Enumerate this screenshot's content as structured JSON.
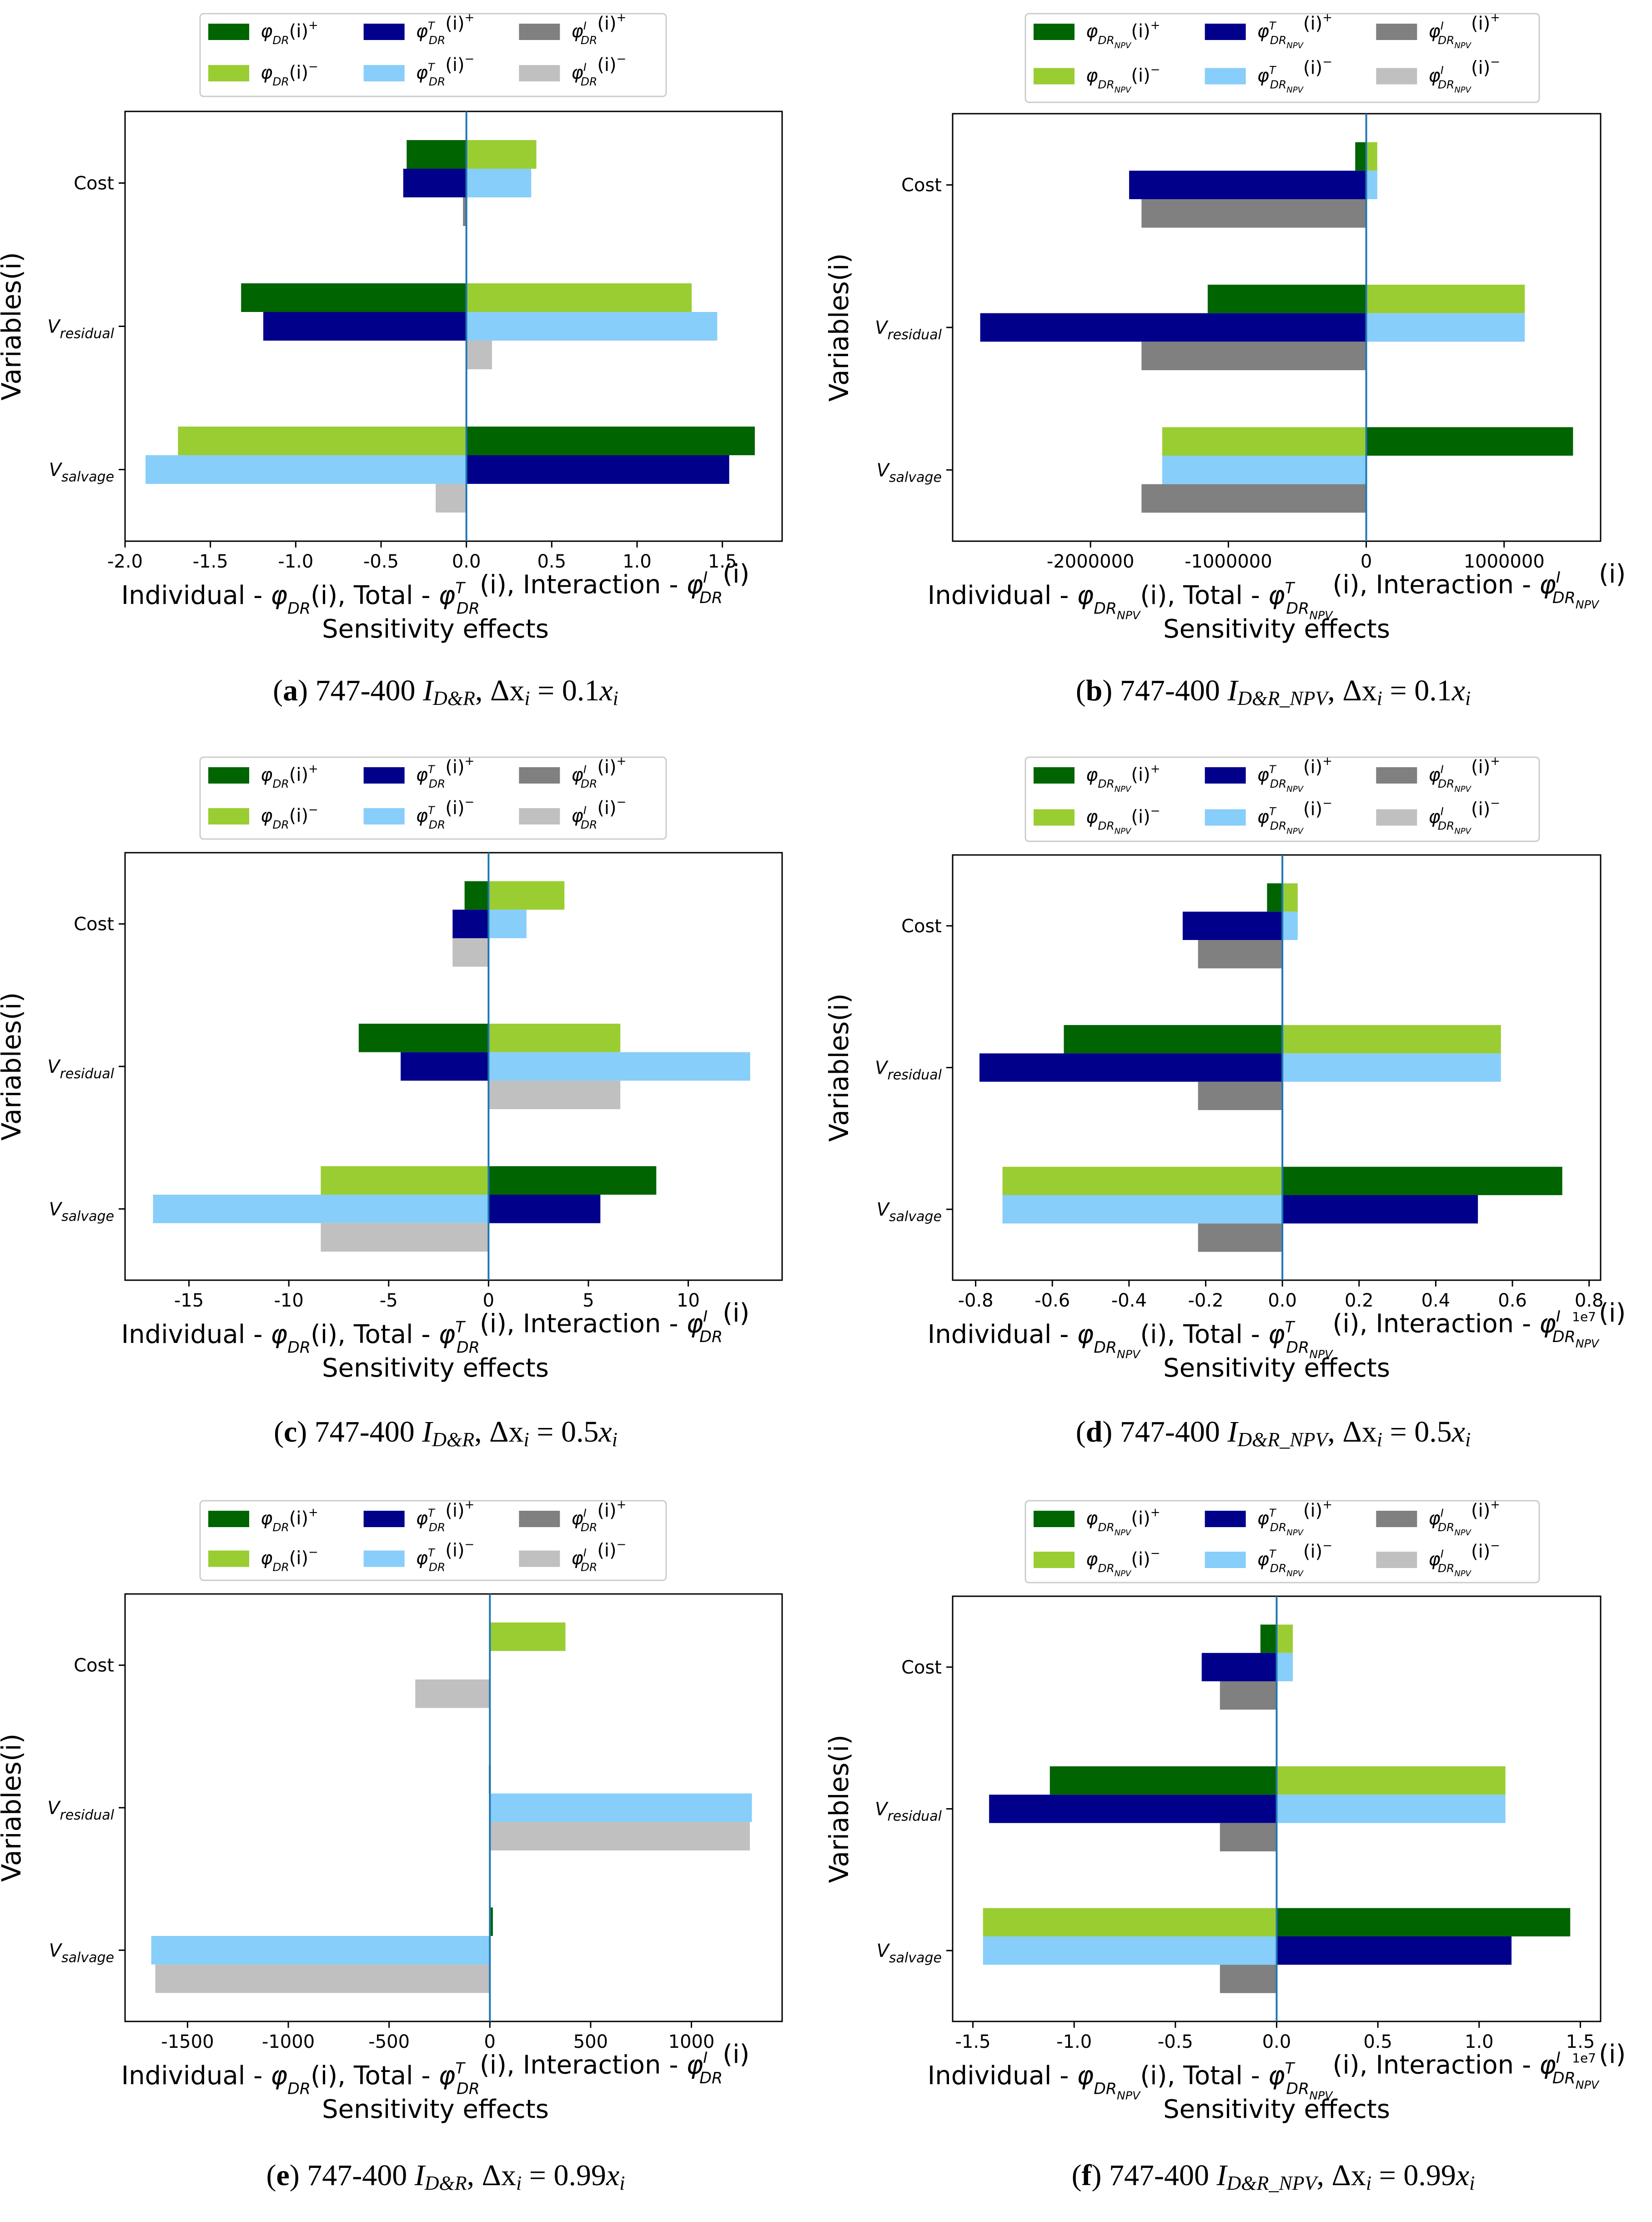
{
  "figure": {
    "legend_entries": [
      {
        "key": "ind_pos",
        "color": "#006400"
      },
      {
        "key": "ind_neg",
        "color": "#9ACD32"
      },
      {
        "key": "tot_pos",
        "color": "#00008B"
      },
      {
        "key": "tot_neg",
        "color": "#87CEFA"
      },
      {
        "key": "int_pos",
        "color": "#808080"
      },
      {
        "key": "int_neg",
        "color": "#C0C0C0"
      }
    ],
    "ylabel": "Variables(i)",
    "xlabel_line2": "Sensitivity effects"
  },
  "chart_data": [
    {
      "panel": "a",
      "type": "bar",
      "orientation": "horizontal",
      "caption": {
        "letter": "a",
        "text": "747-400",
        "index": "I",
        "index_sub": "D&R",
        "delta": "Δx",
        "i": "i",
        "eq": "= 0.1x",
        "i2": "i"
      },
      "categories": [
        "Cost",
        "V",
        "V"
      ],
      "category_subscripts": [
        "",
        "residual",
        "salvage"
      ],
      "series": [
        {
          "name": "φ_DR(i)+",
          "values": [
            -0.35,
            -1.32,
            1.69
          ]
        },
        {
          "name": "φ_DR(i)-",
          "values": [
            0.41,
            1.32,
            -1.69
          ]
        },
        {
          "name": "φT_DR(i)+",
          "values": [
            -0.37,
            -1.19,
            1.54
          ]
        },
        {
          "name": "φT_DR(i)-",
          "values": [
            0.38,
            1.47,
            -1.88
          ]
        },
        {
          "name": "φI_DR(i)+",
          "values": [
            -0.02,
            0.0,
            0.0
          ]
        },
        {
          "name": "φI_DR(i)-",
          "values": [
            0.0,
            0.15,
            -0.18
          ]
        }
      ],
      "xlim": [
        -2.0,
        1.85
      ],
      "xticks": [
        -2.0,
        -1.5,
        -1.0,
        -0.5,
        0.0,
        0.5,
        1.0,
        1.5
      ],
      "xtick_labels": [
        "-2.0",
        "-1.5",
        "-1.0",
        "-0.5",
        "0.0",
        "0.5",
        "1.0",
        "1.5"
      ],
      "xlabel": "Individual - φ_DR(i),  Total - φT_DR(i),  Interaction - φI_DR(i)",
      "ylabel": "Variables(i)",
      "offset_label": ""
    },
    {
      "panel": "b",
      "type": "bar",
      "orientation": "horizontal",
      "caption": {
        "letter": "b",
        "text": "747-400",
        "index": "I",
        "index_sub": "D&R_NPV",
        "delta": "Δx",
        "i": "i",
        "eq": "= 0.1x",
        "i2": "i"
      },
      "categories": [
        "Cost",
        "V",
        "V"
      ],
      "category_subscripts": [
        "",
        "residual",
        "salvage"
      ],
      "series": [
        {
          "name": "φ_DRNPV(i)+",
          "values": [
            -80000,
            -1150000,
            1500000
          ]
        },
        {
          "name": "φ_DRNPV(i)-",
          "values": [
            80000,
            1150000,
            -1480000
          ]
        },
        {
          "name": "φT_DRNPV(i)+",
          "values": [
            -1720000,
            -2800000,
            0
          ]
        },
        {
          "name": "φT_DRNPV(i)-",
          "values": [
            80000,
            1150000,
            -1480000
          ]
        },
        {
          "name": "φI_DRNPV(i)+",
          "values": [
            -1630000,
            -1630000,
            -1630000
          ]
        },
        {
          "name": "φI_DRNPV(i)-",
          "values": [
            0,
            0,
            0
          ]
        }
      ],
      "xlim": [
        -3000000,
        1700000
      ],
      "xticks": [
        -2000000,
        -1000000,
        0,
        1000000
      ],
      "xtick_labels": [
        "-2000000",
        "-1000000",
        "0",
        "1000000"
      ],
      "xlabel": "Individual - φ_DRNPV(i), Total - φT_DRNPV(i), Interaction - φI_DRNPV(i)",
      "ylabel": "Variables(i)",
      "offset_label": ""
    },
    {
      "panel": "c",
      "type": "bar",
      "orientation": "horizontal",
      "caption": {
        "letter": "c",
        "text": "747-400",
        "index": "I",
        "index_sub": "D&R",
        "delta": "Δx",
        "i": "i",
        "eq": "= 0.5x",
        "i2": "i"
      },
      "categories": [
        "Cost",
        "V",
        "V"
      ],
      "category_subscripts": [
        "",
        "residual",
        "salvage"
      ],
      "series": [
        {
          "name": "φ_DR(i)+",
          "values": [
            -1.2,
            -6.5,
            8.4
          ]
        },
        {
          "name": "φ_DR(i)-",
          "values": [
            3.8,
            6.6,
            -8.4
          ]
        },
        {
          "name": "φT_DR(i)+",
          "values": [
            -1.8,
            -4.4,
            5.6
          ]
        },
        {
          "name": "φT_DR(i)-",
          "values": [
            1.9,
            13.1,
            -16.8
          ]
        },
        {
          "name": "φI_DR(i)+",
          "values": [
            0,
            0,
            0
          ]
        },
        {
          "name": "φI_DR(i)-",
          "values": [
            -1.8,
            6.6,
            -8.4
          ]
        }
      ],
      "xlim": [
        -18.2,
        14.7
      ],
      "xticks": [
        -15,
        -10,
        -5,
        0,
        5,
        10
      ],
      "xtick_labels": [
        "-15",
        "-10",
        "-5",
        "0",
        "5",
        "10"
      ],
      "xlabel": "Individual - φ_DR(i),  Total - φT_DR(i),  Interaction - φI_DR(i)",
      "ylabel": "Variables(i)",
      "offset_label": ""
    },
    {
      "panel": "d",
      "type": "bar",
      "orientation": "horizontal",
      "caption": {
        "letter": "d",
        "text": "747-400",
        "index": "I",
        "index_sub": "D&R_NPV",
        "delta": "Δx",
        "i": "i",
        "eq": "= 0.5x",
        "i2": "i"
      },
      "categories": [
        "Cost",
        "V",
        "V"
      ],
      "category_subscripts": [
        "",
        "residual",
        "salvage"
      ],
      "series": [
        {
          "name": "φ_DRNPV(i)+",
          "values": [
            -0.04,
            -0.57,
            0.73
          ]
        },
        {
          "name": "φ_DRNPV(i)-",
          "values": [
            0.04,
            0.57,
            -0.73
          ]
        },
        {
          "name": "φT_DRNPV(i)+",
          "values": [
            -0.26,
            -0.79,
            0.51
          ]
        },
        {
          "name": "φT_DRNPV(i)-",
          "values": [
            0.04,
            0.57,
            -0.73
          ]
        },
        {
          "name": "φI_DRNPV(i)+",
          "values": [
            -0.22,
            -0.22,
            -0.22
          ]
        },
        {
          "name": "φI_DRNPV(i)-",
          "values": [
            0,
            0,
            0
          ]
        }
      ],
      "xlim": [
        -0.86,
        0.83
      ],
      "xticks": [
        -0.8,
        -0.6,
        -0.4,
        -0.2,
        0.0,
        0.2,
        0.4,
        0.6,
        0.8
      ],
      "xtick_labels": [
        "-0.8",
        "-0.6",
        "-0.4",
        "-0.2",
        "0.0",
        "0.2",
        "0.4",
        "0.6",
        "0.8"
      ],
      "xlabel": "Individual - φ_DRNPV(i), Total - φT_DRNPV(i), Interaction - φI_DRNPV(i)",
      "ylabel": "Variables(i)",
      "offset_label": "1e7"
    },
    {
      "panel": "e",
      "type": "bar",
      "orientation": "horizontal",
      "caption": {
        "letter": "e",
        "text": "747-400",
        "index": "I",
        "index_sub": "D&R",
        "delta": "Δx",
        "i": "i",
        "eq": "= 0.99x",
        "i2": "i"
      },
      "categories": [
        "Cost",
        "V",
        "V"
      ],
      "category_subscripts": [
        "",
        "residual",
        "salvage"
      ],
      "series": [
        {
          "name": "φ_DR(i)+",
          "values": [
            0,
            -5,
            15
          ]
        },
        {
          "name": "φ_DR(i)-",
          "values": [
            375,
            5,
            0
          ]
        },
        {
          "name": "φT_DR(i)+",
          "values": [
            0,
            0,
            0
          ]
        },
        {
          "name": "φT_DR(i)-",
          "values": [
            0,
            1300,
            -1680
          ]
        },
        {
          "name": "φI_DR(i)+",
          "values": [
            0,
            0,
            0
          ]
        },
        {
          "name": "φI_DR(i)-",
          "values": [
            -370,
            1290,
            -1660
          ]
        }
      ],
      "xlim": [
        -1810,
        1450
      ],
      "xticks": [
        -1500,
        -1000,
        -500,
        0,
        500,
        1000
      ],
      "xtick_labels": [
        "-1500",
        "-1000",
        "-500",
        "0",
        "500",
        "1000"
      ],
      "xlabel": "Individual - φ_DR(i),  Total - φT_DR(i),  Interaction - φI_DR(i)",
      "ylabel": "Variables(i)",
      "offset_label": ""
    },
    {
      "panel": "f",
      "type": "bar",
      "orientation": "horizontal",
      "caption": {
        "letter": "f",
        "text": "747-400",
        "index": "I",
        "index_sub": "D&R_NPV",
        "delta": "Δx",
        "i": "i",
        "eq": "= 0.99x",
        "i2": "i"
      },
      "categories": [
        "Cost",
        "V",
        "V"
      ],
      "category_subscripts": [
        "",
        "residual",
        "salvage"
      ],
      "series": [
        {
          "name": "φ_DRNPV(i)+",
          "values": [
            -0.08,
            -1.12,
            1.45
          ]
        },
        {
          "name": "φ_DRNPV(i)-",
          "values": [
            0.08,
            1.13,
            -1.45
          ]
        },
        {
          "name": "φT_DRNPV(i)+",
          "values": [
            -0.37,
            -1.42,
            1.16
          ]
        },
        {
          "name": "φT_DRNPV(i)-",
          "values": [
            0.08,
            1.13,
            -1.45
          ]
        },
        {
          "name": "φI_DRNPV(i)+",
          "values": [
            -0.28,
            -0.28,
            -0.28
          ]
        },
        {
          "name": "φI_DRNPV(i)-",
          "values": [
            0,
            0,
            0
          ]
        }
      ],
      "xlim": [
        -1.6,
        1.6
      ],
      "xticks": [
        -1.5,
        -1.0,
        -0.5,
        0.0,
        0.5,
        1.0,
        1.5
      ],
      "xtick_labels": [
        "-1.5",
        "-1.0",
        "-0.5",
        "0.0",
        "0.5",
        "1.0",
        "1.5"
      ],
      "xlabel": "Individual - φ_DRNPV(i), Total - φT_DRNPV(i), Interaction - φI_DRNPV(i)",
      "ylabel": "Variables(i)",
      "offset_label": "1e7"
    }
  ]
}
